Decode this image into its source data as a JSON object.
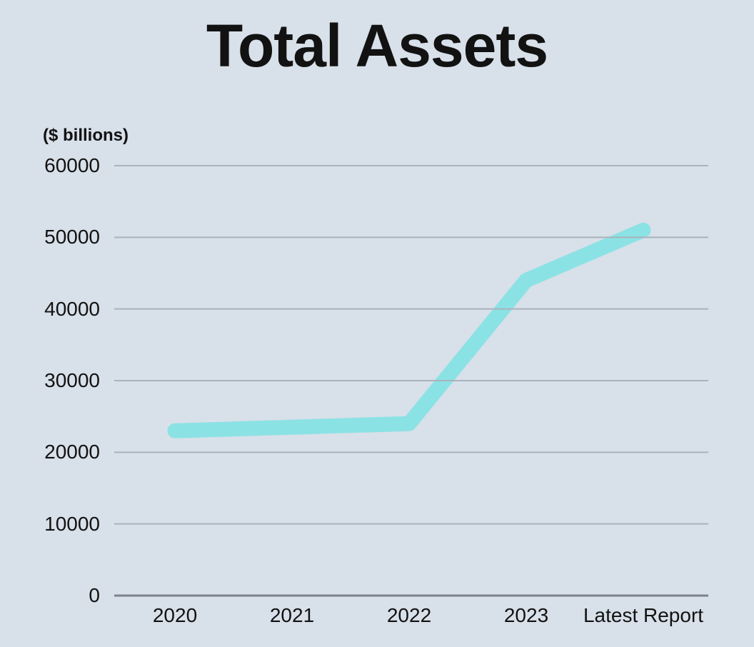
{
  "theme": {
    "background": "#d8e0e9",
    "line": "#8be2e4",
    "gridline": "#aab2bb",
    "baseline": "#7b828c",
    "text": "#121212"
  },
  "chart": {
    "title": "Total Assets",
    "unit_label": "($ billions)"
  },
  "chart_data": {
    "type": "line",
    "title": "Total Assets",
    "xlabel": "",
    "ylabel": "($ billions)",
    "categories": [
      "2020",
      "2021",
      "2022",
      "2023",
      "Latest Report"
    ],
    "series": [
      {
        "name": "Total Assets",
        "values": [
          23000,
          23500,
          24000,
          44000,
          51000
        ]
      }
    ],
    "ylim": [
      0,
      60000
    ],
    "yticks": [
      0,
      10000,
      20000,
      30000,
      40000,
      50000,
      60000
    ],
    "grid": true,
    "legend": false,
    "line_style": "thick-rounded",
    "gridlines_over_line": true
  }
}
